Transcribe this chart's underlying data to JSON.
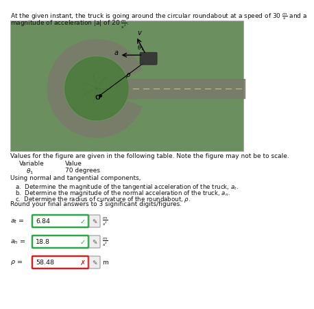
{
  "line1": "At the given instant, the truck is going around the circular roundabout at a speed of 30 $\\frac{m}{s}$ and a",
  "line2": "magnitude of acceleration $|$a$|$ of 20 $\\frac{m}{s^2}$.",
  "table_intro": "Values for the figure are given in the following table. Note the figure may not be to scale.",
  "col1_header": "Variable",
  "col2_header": "Value",
  "var_label": "$\\theta_1$",
  "var_value": "70 degrees",
  "problem_text": "Using normal and tangential components,",
  "part_a": "a.  Determine the magnitude of the tangential acceleration of the truck, $a_t$.",
  "part_b": "b.  Determine the magnitude of the normal acceleration of the truck, $a_n$.",
  "part_c": "c.  Determine the radius of curvature of the roundabout, $\\rho$.",
  "round_text": "Round your final answers to 3 significant digits/figures.",
  "ans_a_label": "$a_t$ =",
  "ans_a_value": "6.84",
  "ans_a_unit": "$\\frac{m}{s^2}$",
  "ans_a_correct": true,
  "ans_b_label": "$a_n$ =",
  "ans_b_value": "18.8",
  "ans_b_unit": "$\\frac{m}{s^2}$",
  "ans_b_correct": true,
  "ans_c_label": "$\\rho$ =",
  "ans_c_value": "58.48",
  "ans_c_unit": "m",
  "ans_c_correct": false,
  "correct_color": "#28a745",
  "incorrect_color": "#cc2222",
  "text_color": "#111111",
  "bg_color": "#ffffff",
  "img_bg": "#6b8f5e",
  "road_color": "#7a7a6a",
  "grass_color": "#4e7a3e"
}
